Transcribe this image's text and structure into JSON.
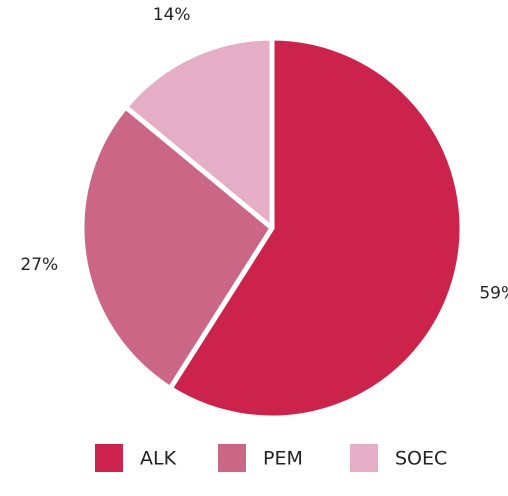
{
  "chart_data": {
    "type": "pie",
    "categories": [
      "ALK",
      "PEM",
      "SOEC"
    ],
    "values": [
      59,
      27,
      14
    ],
    "value_labels": [
      "59%",
      "27%",
      "14%"
    ],
    "colors": [
      "#cc234c",
      "#cc6686",
      "#e5aec6"
    ],
    "legend": "bottom"
  }
}
